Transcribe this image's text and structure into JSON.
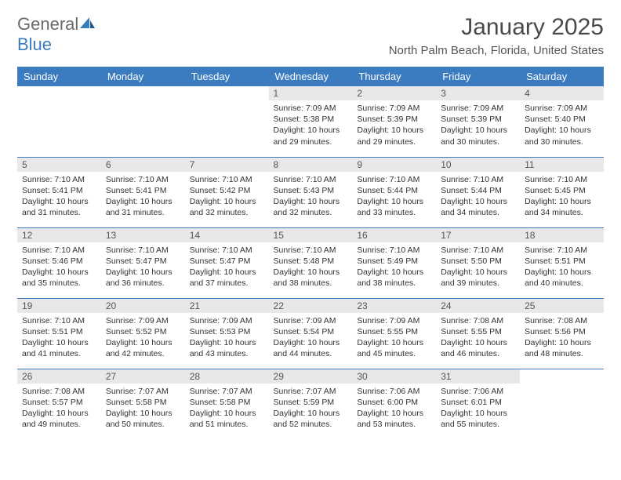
{
  "logo": {
    "text1": "General",
    "text2": "Blue"
  },
  "title": "January 2025",
  "subtitle": "North Palm Beach, Florida, United States",
  "colors": {
    "header_bg": "#3b7bbf",
    "header_text": "#ffffff",
    "daynum_bg": "#e8e8e8",
    "daynum_text": "#555555",
    "border": "#3b7bbf",
    "body_text": "#333333",
    "title_text": "#4a4a4a",
    "logo_gray": "#6a6a6a",
    "logo_blue": "#3b7bbf"
  },
  "typography": {
    "title_fontsize": 30,
    "subtitle_fontsize": 15,
    "header_fontsize": 13,
    "daynum_fontsize": 12,
    "cell_fontsize": 10.5
  },
  "day_headers": [
    "Sunday",
    "Monday",
    "Tuesday",
    "Wednesday",
    "Thursday",
    "Friday",
    "Saturday"
  ],
  "weeks": [
    [
      null,
      null,
      null,
      {
        "n": "1",
        "sr": "Sunrise: 7:09 AM",
        "ss": "Sunset: 5:38 PM",
        "d1": "Daylight: 10 hours",
        "d2": "and 29 minutes."
      },
      {
        "n": "2",
        "sr": "Sunrise: 7:09 AM",
        "ss": "Sunset: 5:39 PM",
        "d1": "Daylight: 10 hours",
        "d2": "and 29 minutes."
      },
      {
        "n": "3",
        "sr": "Sunrise: 7:09 AM",
        "ss": "Sunset: 5:39 PM",
        "d1": "Daylight: 10 hours",
        "d2": "and 30 minutes."
      },
      {
        "n": "4",
        "sr": "Sunrise: 7:09 AM",
        "ss": "Sunset: 5:40 PM",
        "d1": "Daylight: 10 hours",
        "d2": "and 30 minutes."
      }
    ],
    [
      {
        "n": "5",
        "sr": "Sunrise: 7:10 AM",
        "ss": "Sunset: 5:41 PM",
        "d1": "Daylight: 10 hours",
        "d2": "and 31 minutes."
      },
      {
        "n": "6",
        "sr": "Sunrise: 7:10 AM",
        "ss": "Sunset: 5:41 PM",
        "d1": "Daylight: 10 hours",
        "d2": "and 31 minutes."
      },
      {
        "n": "7",
        "sr": "Sunrise: 7:10 AM",
        "ss": "Sunset: 5:42 PM",
        "d1": "Daylight: 10 hours",
        "d2": "and 32 minutes."
      },
      {
        "n": "8",
        "sr": "Sunrise: 7:10 AM",
        "ss": "Sunset: 5:43 PM",
        "d1": "Daylight: 10 hours",
        "d2": "and 32 minutes."
      },
      {
        "n": "9",
        "sr": "Sunrise: 7:10 AM",
        "ss": "Sunset: 5:44 PM",
        "d1": "Daylight: 10 hours",
        "d2": "and 33 minutes."
      },
      {
        "n": "10",
        "sr": "Sunrise: 7:10 AM",
        "ss": "Sunset: 5:44 PM",
        "d1": "Daylight: 10 hours",
        "d2": "and 34 minutes."
      },
      {
        "n": "11",
        "sr": "Sunrise: 7:10 AM",
        "ss": "Sunset: 5:45 PM",
        "d1": "Daylight: 10 hours",
        "d2": "and 34 minutes."
      }
    ],
    [
      {
        "n": "12",
        "sr": "Sunrise: 7:10 AM",
        "ss": "Sunset: 5:46 PM",
        "d1": "Daylight: 10 hours",
        "d2": "and 35 minutes."
      },
      {
        "n": "13",
        "sr": "Sunrise: 7:10 AM",
        "ss": "Sunset: 5:47 PM",
        "d1": "Daylight: 10 hours",
        "d2": "and 36 minutes."
      },
      {
        "n": "14",
        "sr": "Sunrise: 7:10 AM",
        "ss": "Sunset: 5:47 PM",
        "d1": "Daylight: 10 hours",
        "d2": "and 37 minutes."
      },
      {
        "n": "15",
        "sr": "Sunrise: 7:10 AM",
        "ss": "Sunset: 5:48 PM",
        "d1": "Daylight: 10 hours",
        "d2": "and 38 minutes."
      },
      {
        "n": "16",
        "sr": "Sunrise: 7:10 AM",
        "ss": "Sunset: 5:49 PM",
        "d1": "Daylight: 10 hours",
        "d2": "and 38 minutes."
      },
      {
        "n": "17",
        "sr": "Sunrise: 7:10 AM",
        "ss": "Sunset: 5:50 PM",
        "d1": "Daylight: 10 hours",
        "d2": "and 39 minutes."
      },
      {
        "n": "18",
        "sr": "Sunrise: 7:10 AM",
        "ss": "Sunset: 5:51 PM",
        "d1": "Daylight: 10 hours",
        "d2": "and 40 minutes."
      }
    ],
    [
      {
        "n": "19",
        "sr": "Sunrise: 7:10 AM",
        "ss": "Sunset: 5:51 PM",
        "d1": "Daylight: 10 hours",
        "d2": "and 41 minutes."
      },
      {
        "n": "20",
        "sr": "Sunrise: 7:09 AM",
        "ss": "Sunset: 5:52 PM",
        "d1": "Daylight: 10 hours",
        "d2": "and 42 minutes."
      },
      {
        "n": "21",
        "sr": "Sunrise: 7:09 AM",
        "ss": "Sunset: 5:53 PM",
        "d1": "Daylight: 10 hours",
        "d2": "and 43 minutes."
      },
      {
        "n": "22",
        "sr": "Sunrise: 7:09 AM",
        "ss": "Sunset: 5:54 PM",
        "d1": "Daylight: 10 hours",
        "d2": "and 44 minutes."
      },
      {
        "n": "23",
        "sr": "Sunrise: 7:09 AM",
        "ss": "Sunset: 5:55 PM",
        "d1": "Daylight: 10 hours",
        "d2": "and 45 minutes."
      },
      {
        "n": "24",
        "sr": "Sunrise: 7:08 AM",
        "ss": "Sunset: 5:55 PM",
        "d1": "Daylight: 10 hours",
        "d2": "and 46 minutes."
      },
      {
        "n": "25",
        "sr": "Sunrise: 7:08 AM",
        "ss": "Sunset: 5:56 PM",
        "d1": "Daylight: 10 hours",
        "d2": "and 48 minutes."
      }
    ],
    [
      {
        "n": "26",
        "sr": "Sunrise: 7:08 AM",
        "ss": "Sunset: 5:57 PM",
        "d1": "Daylight: 10 hours",
        "d2": "and 49 minutes."
      },
      {
        "n": "27",
        "sr": "Sunrise: 7:07 AM",
        "ss": "Sunset: 5:58 PM",
        "d1": "Daylight: 10 hours",
        "d2": "and 50 minutes."
      },
      {
        "n": "28",
        "sr": "Sunrise: 7:07 AM",
        "ss": "Sunset: 5:58 PM",
        "d1": "Daylight: 10 hours",
        "d2": "and 51 minutes."
      },
      {
        "n": "29",
        "sr": "Sunrise: 7:07 AM",
        "ss": "Sunset: 5:59 PM",
        "d1": "Daylight: 10 hours",
        "d2": "and 52 minutes."
      },
      {
        "n": "30",
        "sr": "Sunrise: 7:06 AM",
        "ss": "Sunset: 6:00 PM",
        "d1": "Daylight: 10 hours",
        "d2": "and 53 minutes."
      },
      {
        "n": "31",
        "sr": "Sunrise: 7:06 AM",
        "ss": "Sunset: 6:01 PM",
        "d1": "Daylight: 10 hours",
        "d2": "and 55 minutes."
      },
      null
    ]
  ]
}
